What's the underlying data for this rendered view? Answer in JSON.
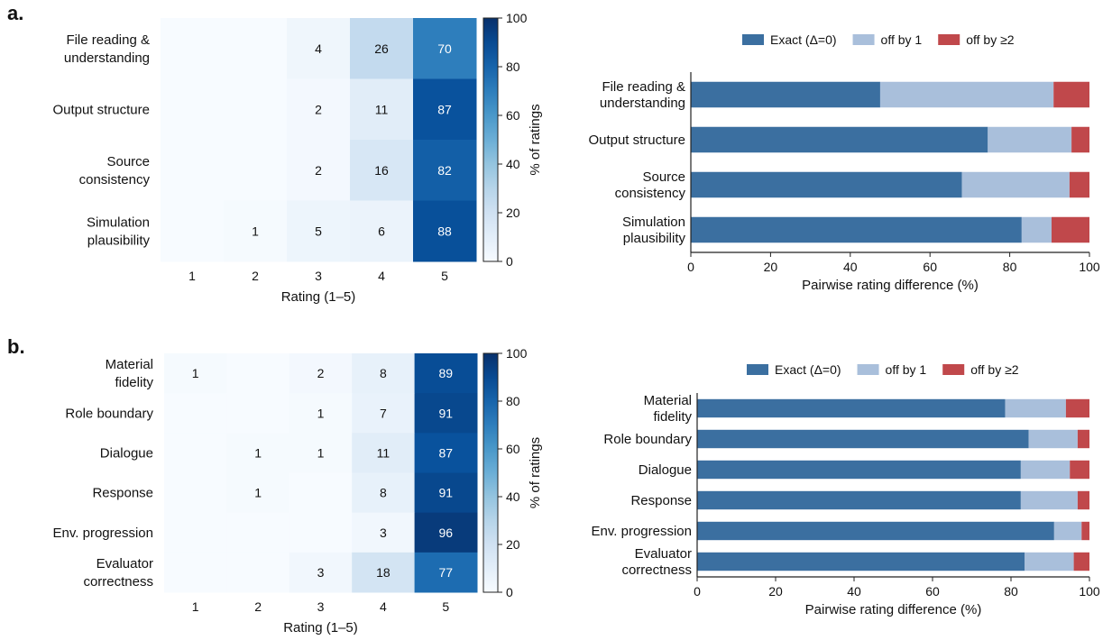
{
  "panels": [
    {
      "label": "a."
    },
    {
      "label": "b."
    }
  ],
  "colors": {
    "exact": "#3b6fa0",
    "off1": "#a9bfdb",
    "off2": "#c0484b"
  },
  "chart_data": [
    {
      "type": "heatmap",
      "panel": "a.",
      "rows": [
        "File reading & understanding",
        "Output structure",
        "Source consistency",
        "Simulation plausibility"
      ],
      "row_labels": [
        [
          "File reading &",
          "understanding"
        ],
        [
          "Output structure"
        ],
        [
          "Source",
          "consistency"
        ],
        [
          "Simulation",
          "plausibility"
        ]
      ],
      "columns": [
        "1",
        "2",
        "3",
        "4",
        "5"
      ],
      "values": [
        [
          0,
          0,
          4,
          26,
          70
        ],
        [
          0,
          0,
          2,
          11,
          87
        ],
        [
          0,
          0,
          2,
          16,
          82
        ],
        [
          0,
          1,
          5,
          6,
          88
        ]
      ],
      "xlabel": "Rating (1–5)",
      "colorbar": {
        "label": "% of ratings",
        "range": [
          0,
          100
        ],
        "ticks": [
          "0",
          "20",
          "40",
          "60",
          "80",
          "100"
        ],
        "colormap": "Blues"
      }
    },
    {
      "type": "bar",
      "orientation": "horizontal",
      "stacked": true,
      "panel": "a.",
      "categories": [
        "File reading & understanding",
        "Output structure",
        "Source consistency",
        "Simulation plausibility"
      ],
      "category_labels": [
        [
          "File reading &",
          "understanding"
        ],
        [
          "Output structure"
        ],
        [
          "Source",
          "consistency"
        ],
        [
          "Simulation",
          "plausibility"
        ]
      ],
      "series": [
        {
          "name": "Exact (Δ=0)",
          "values": [
            47.5,
            74.5,
            68,
            83
          ]
        },
        {
          "name": "off by 1",
          "values": [
            43.5,
            21,
            27,
            7.5
          ]
        },
        {
          "name": "off by ≥2",
          "values": [
            9,
            4.5,
            5,
            9.5
          ]
        }
      ],
      "xlabel": "Pairwise rating difference (%)",
      "xlim": [
        0,
        100
      ],
      "xticks": [
        "0",
        "20",
        "40",
        "60",
        "80",
        "100"
      ],
      "legend": "top"
    },
    {
      "type": "heatmap",
      "panel": "b.",
      "rows": [
        "Material fidelity",
        "Role boundary",
        "Dialogue",
        "Response",
        "Env. progression",
        "Evaluator correctness"
      ],
      "row_labels": [
        [
          "Material",
          "fidelity"
        ],
        [
          "Role boundary"
        ],
        [
          "Dialogue"
        ],
        [
          "Response"
        ],
        [
          "Env. progression"
        ],
        [
          "Evaluator",
          "correctness"
        ]
      ],
      "columns": [
        "1",
        "2",
        "3",
        "4",
        "5"
      ],
      "values": [
        [
          1,
          0,
          2,
          8,
          89
        ],
        [
          0,
          0,
          1,
          7,
          91
        ],
        [
          0,
          1,
          1,
          11,
          87
        ],
        [
          0,
          1,
          0,
          8,
          91
        ],
        [
          0,
          0,
          0,
          3,
          96
        ],
        [
          0,
          0,
          3,
          18,
          77
        ]
      ],
      "xlabel": "Rating (1–5)",
      "colorbar": {
        "label": "% of ratings",
        "range": [
          0,
          100
        ],
        "ticks": [
          "0",
          "20",
          "40",
          "60",
          "80",
          "100"
        ],
        "colormap": "Blues"
      }
    },
    {
      "type": "bar",
      "orientation": "horizontal",
      "stacked": true,
      "panel": "b.",
      "categories": [
        "Material fidelity",
        "Role boundary",
        "Dialogue",
        "Response",
        "Env. progression",
        "Evaluator correctness"
      ],
      "category_labels": [
        [
          "Material",
          "fidelity"
        ],
        [
          "Role boundary"
        ],
        [
          "Dialogue"
        ],
        [
          "Response"
        ],
        [
          "Env. progression"
        ],
        [
          "Evaluator",
          "correctness"
        ]
      ],
      "series": [
        {
          "name": "Exact (Δ=0)",
          "values": [
            78.5,
            84.5,
            82.5,
            82.5,
            91,
            83.5
          ]
        },
        {
          "name": "off by 1",
          "values": [
            15.5,
            12.5,
            12.5,
            14.5,
            7,
            12.5
          ]
        },
        {
          "name": "off by ≥2",
          "values": [
            6,
            3,
            5,
            3,
            2,
            4
          ]
        }
      ],
      "xlabel": "Pairwise rating difference (%)",
      "xlim": [
        0,
        100
      ],
      "xticks": [
        "0",
        "20",
        "40",
        "60",
        "80",
        "100"
      ],
      "legend": "top"
    }
  ]
}
